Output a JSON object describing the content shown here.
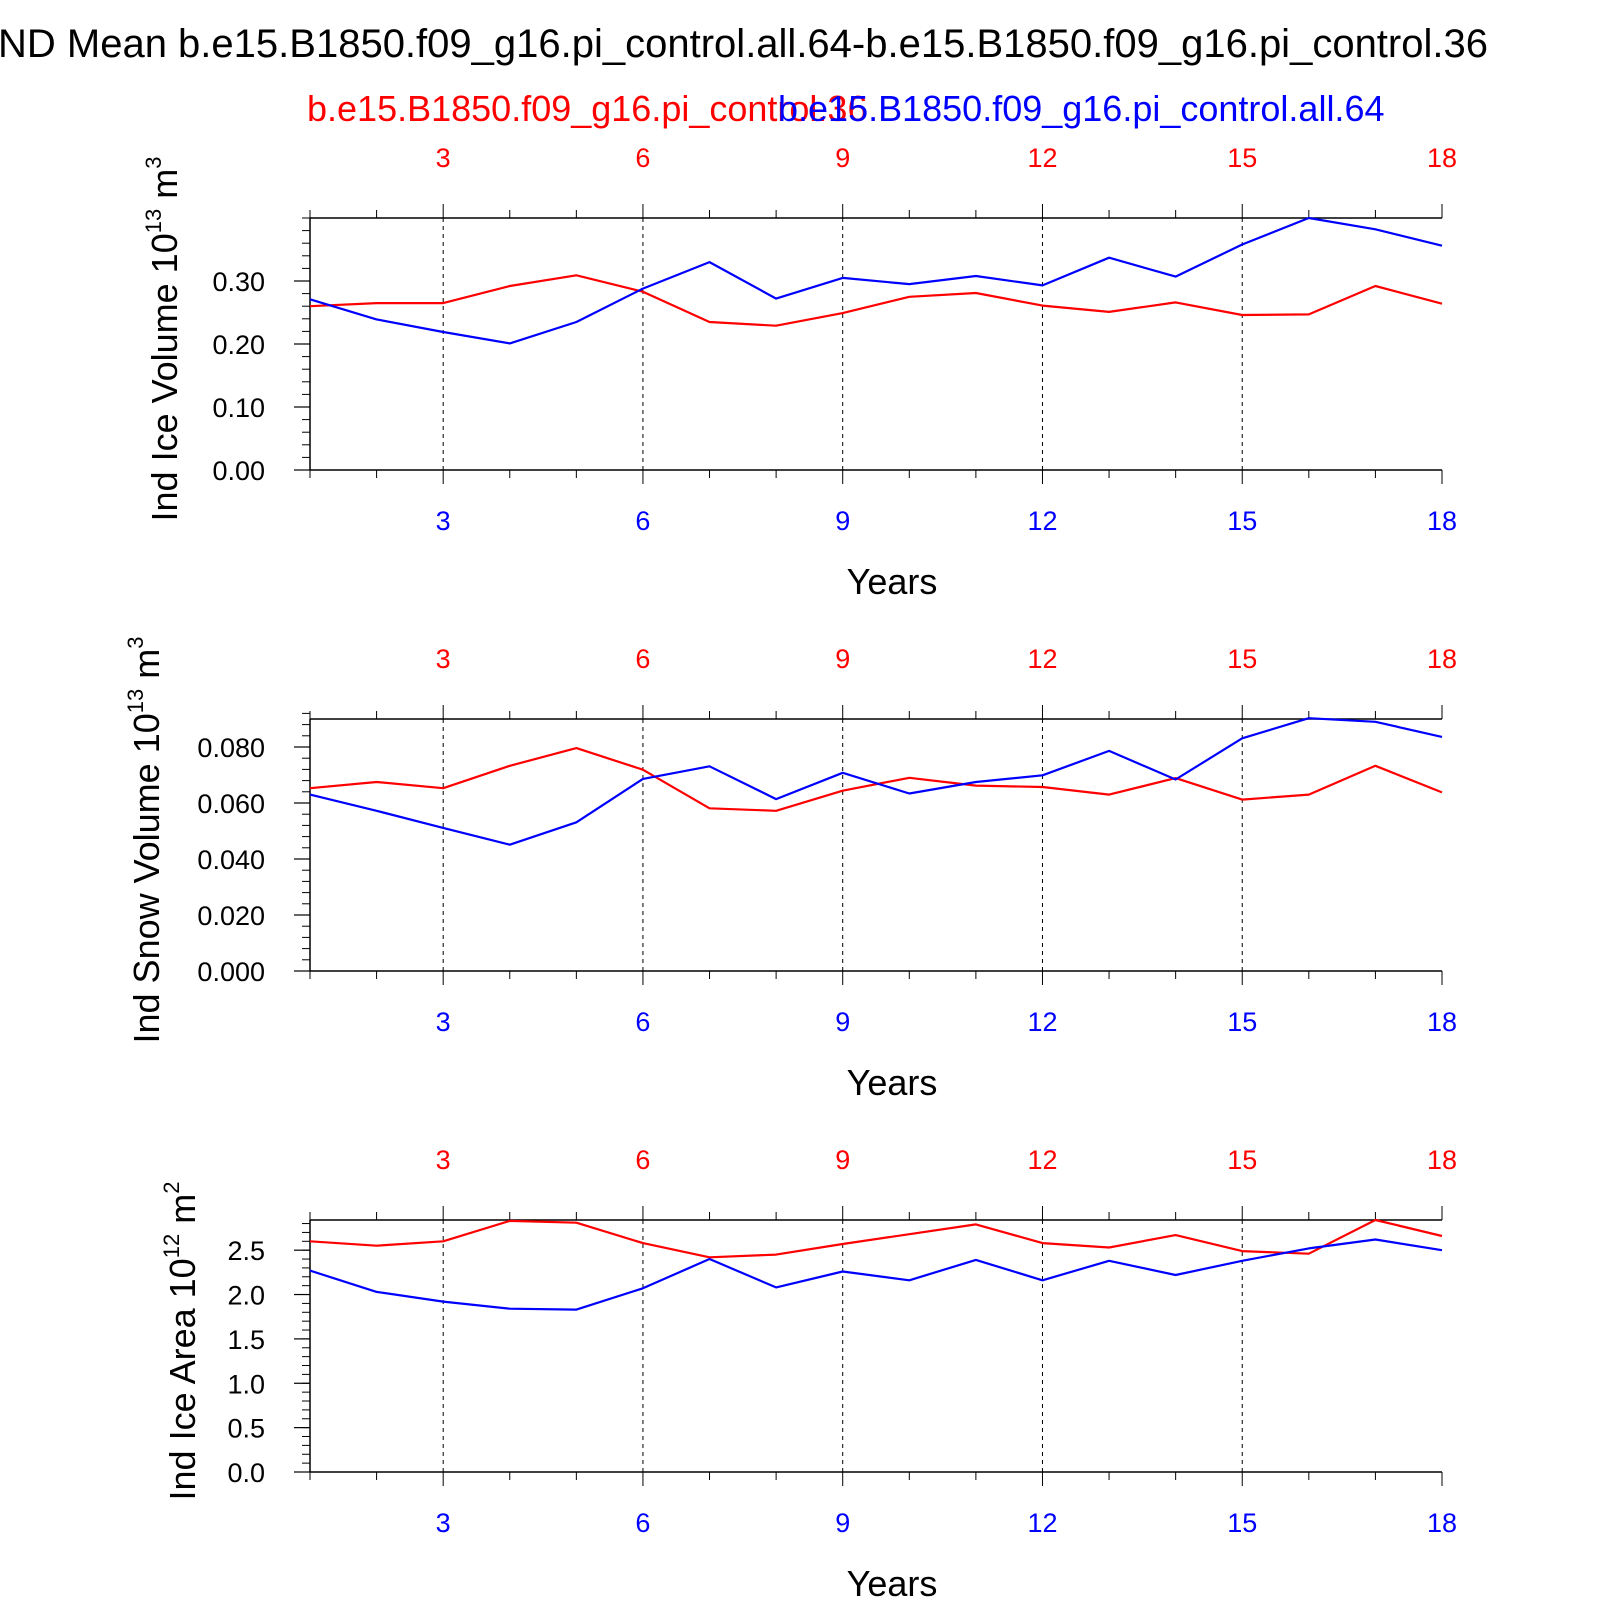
{
  "title": "ND Mean b.e15.B1850.f09_g16.pi_control.all.64-b.e15.B1850.f09_g16.pi_control.36",
  "legend": [
    {
      "name": "b.e15.B1850.f09_g16.pi_control.36",
      "color": "#ff0000"
    },
    {
      "name": "b.e15.B1850.f09_g16.pi_control.all.64",
      "color": "#0000ff"
    }
  ],
  "colors": {
    "top_axis": "#ff0000",
    "bottom_axis": "#0000ff",
    "frame": "#000000"
  },
  "chart_data": [
    {
      "type": "line",
      "ylabel": "Ind Ice Volume 10",
      "ylabel_exp": "13",
      "ylabel_unit": " m",
      "ylabel_unit_exp": "3",
      "xlabel": "Years",
      "xlim": [
        1,
        18
      ],
      "ylim": [
        0,
        0.4
      ],
      "yticks": [
        0,
        0.1,
        0.2,
        0.3
      ],
      "ytick_labels": [
        "0.00",
        "0.10",
        "0.20",
        "0.30"
      ],
      "yminor_step": 0.02,
      "xticks": [
        3,
        6,
        9,
        12,
        15,
        18
      ],
      "xtick_labels": [
        "3",
        "6",
        "9",
        "12",
        "15",
        "18"
      ],
      "grid": "vertical dashed at major x ticks",
      "x": [
        1,
        2,
        3,
        4,
        5,
        6,
        7,
        8,
        9,
        10,
        11,
        12,
        13,
        14,
        15,
        16,
        17,
        18
      ],
      "series": [
        {
          "name": "b.e15.B1850.f09_g16.pi_control.36",
          "color": "#ff0000",
          "values": [
            0.26,
            0.265,
            0.265,
            0.292,
            0.309,
            0.283,
            0.235,
            0.229,
            0.249,
            0.275,
            0.281,
            0.261,
            0.251,
            0.266,
            0.246,
            0.247,
            0.292,
            0.264
          ]
        },
        {
          "name": "b.e15.B1850.f09_g16.pi_control.all.64",
          "color": "#0000ff",
          "values": [
            0.271,
            0.239,
            0.219,
            0.201,
            0.235,
            0.288,
            0.33,
            0.272,
            0.305,
            0.295,
            0.308,
            0.293,
            0.337,
            0.307,
            0.358,
            0.4,
            0.382,
            0.356
          ]
        }
      ]
    },
    {
      "type": "line",
      "ylabel": "Ind Snow Volume 10",
      "ylabel_exp": "13",
      "ylabel_unit": " m",
      "ylabel_unit_exp": "3",
      "xlabel": "Years",
      "xlim": [
        1,
        18
      ],
      "ylim": [
        0,
        0.09
      ],
      "yticks": [
        0,
        0.02,
        0.04,
        0.06,
        0.08
      ],
      "ytick_labels": [
        "0.000",
        "0.020",
        "0.040",
        "0.060",
        "0.080"
      ],
      "yminor_step": 0.004,
      "xticks": [
        3,
        6,
        9,
        12,
        15,
        18
      ],
      "xtick_labels": [
        "3",
        "6",
        "9",
        "12",
        "15",
        "18"
      ],
      "grid": "vertical dashed at major x ticks",
      "x": [
        1,
        2,
        3,
        4,
        5,
        6,
        7,
        8,
        9,
        10,
        11,
        12,
        13,
        14,
        15,
        16,
        17,
        18
      ],
      "series": [
        {
          "name": "b.e15.B1850.f09_g16.pi_control.36",
          "color": "#ff0000",
          "values": [
            0.0653,
            0.0675,
            0.0653,
            0.0733,
            0.0796,
            0.0719,
            0.0581,
            0.0572,
            0.0644,
            0.069,
            0.0662,
            0.0657,
            0.063,
            0.0689,
            0.0612,
            0.063,
            0.0733,
            0.0638
          ]
        },
        {
          "name": "b.e15.B1850.f09_g16.pi_control.all.64",
          "color": "#0000ff",
          "values": [
            0.063,
            0.0572,
            0.0511,
            0.0451,
            0.0531,
            0.0686,
            0.0731,
            0.0614,
            0.0708,
            0.0634,
            0.0675,
            0.0699,
            0.0786,
            0.0684,
            0.0831,
            0.0903,
            0.089,
            0.0836
          ]
        }
      ]
    },
    {
      "type": "line",
      "ylabel": "Ind Ice Area 10",
      "ylabel_exp": "12",
      "ylabel_unit": " m",
      "ylabel_unit_exp": "2",
      "xlabel": "Years",
      "xlim": [
        1,
        18
      ],
      "ylim": [
        0,
        2.84
      ],
      "yticks": [
        0,
        0.5,
        1.0,
        1.5,
        2.0,
        2.5
      ],
      "ytick_labels": [
        "0.0",
        "0.5",
        "1.0",
        "1.5",
        "2.0",
        "2.5"
      ],
      "yminor_step": 0.1,
      "xticks": [
        3,
        6,
        9,
        12,
        15,
        18
      ],
      "xtick_labels": [
        "3",
        "6",
        "9",
        "12",
        "15",
        "18"
      ],
      "grid": "vertical dashed at major x ticks",
      "x": [
        1,
        2,
        3,
        4,
        5,
        6,
        7,
        8,
        9,
        10,
        11,
        12,
        13,
        14,
        15,
        16,
        17,
        18
      ],
      "series": [
        {
          "name": "b.e15.B1850.f09_g16.pi_control.36",
          "color": "#ff0000",
          "values": [
            2.6,
            2.55,
            2.6,
            2.83,
            2.81,
            2.58,
            2.42,
            2.45,
            2.57,
            2.68,
            2.79,
            2.58,
            2.53,
            2.67,
            2.49,
            2.46,
            2.84,
            2.66
          ]
        },
        {
          "name": "b.e15.B1850.f09_g16.pi_control.all.64",
          "color": "#0000ff",
          "values": [
            2.27,
            2.03,
            1.92,
            1.84,
            1.83,
            2.07,
            2.4,
            2.08,
            2.26,
            2.16,
            2.39,
            2.16,
            2.38,
            2.22,
            2.38,
            2.52,
            2.62,
            2.5
          ]
        }
      ]
    }
  ]
}
